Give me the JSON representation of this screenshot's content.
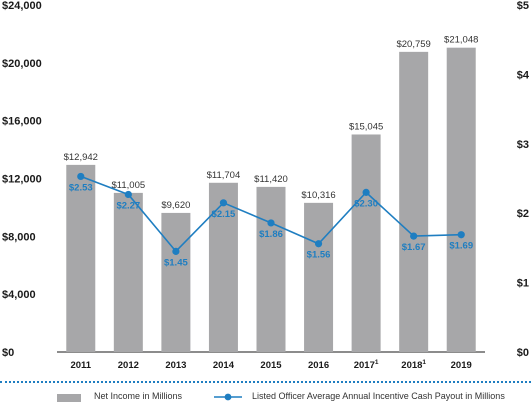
{
  "chart_data": {
    "type": "bar+line",
    "categories": [
      "2011",
      "2012",
      "2013",
      "2014",
      "2015",
      "2016",
      "2017",
      "2018",
      "2019"
    ],
    "category_superscripts": [
      "",
      "",
      "",
      "",
      "",
      "",
      "1",
      "1",
      ""
    ],
    "series": [
      {
        "name": "Net Income in Millions",
        "type": "bar",
        "axis": "left",
        "values": [
          12942,
          11005,
          9620,
          11704,
          11420,
          10316,
          15045,
          20759,
          21048
        ],
        "labels": [
          "$12,942",
          "$11,005",
          "$9,620",
          "$11,704",
          "$11,420",
          "$10,316",
          "$15,045",
          "$20,759",
          "$21,048"
        ],
        "color": "#a7a7a9"
      },
      {
        "name": "Listed Officer Average Annual Incentive Cash Payout in Millions",
        "type": "line",
        "axis": "right",
        "values": [
          2.53,
          2.27,
          1.45,
          2.15,
          1.86,
          1.56,
          2.3,
          1.67,
          1.69
        ],
        "labels": [
          "$2.53",
          "$2.27",
          "$1.45",
          "$2.15",
          "$1.86",
          "$1.56",
          "$2.30",
          "$1.67",
          "$1.69"
        ],
        "color": "#1f7ec1"
      }
    ],
    "y_left": {
      "ylim": [
        0,
        24000
      ],
      "ticks": [
        0,
        4000,
        8000,
        12000,
        16000,
        20000,
        24000
      ],
      "tick_labels": [
        "$0",
        "$4,000",
        "$8,000",
        "$12,000",
        "$16,000",
        "$20,000",
        "$24,000"
      ]
    },
    "y_right": {
      "ylim": [
        0,
        5
      ],
      "ticks": [
        0,
        1,
        2,
        3,
        4,
        5
      ],
      "tick_labels": [
        "$0",
        "$1",
        "$2",
        "$3",
        "$4",
        "$5"
      ]
    },
    "grid": false,
    "legend_position": "bottom"
  }
}
